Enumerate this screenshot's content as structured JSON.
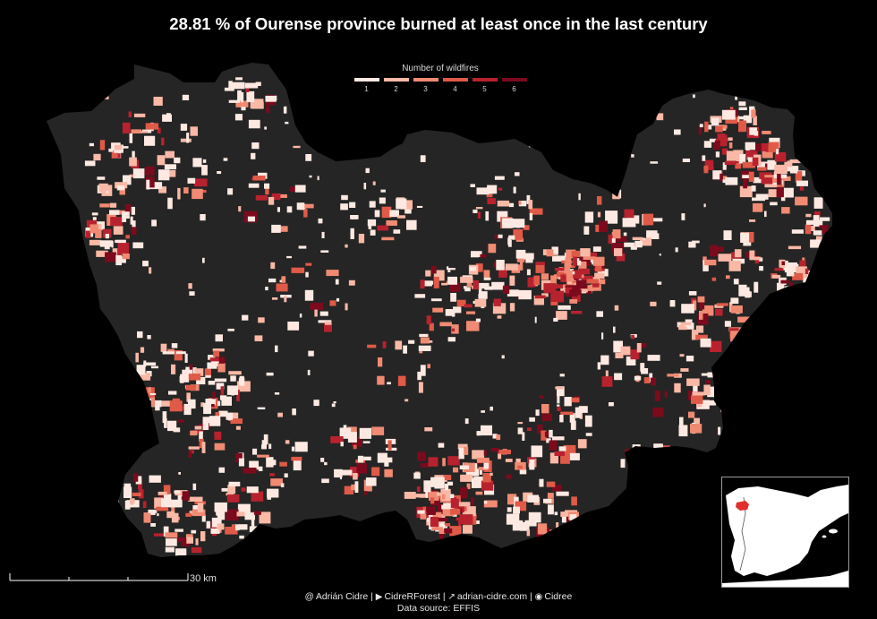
{
  "title": "28.81 % of Ourense province burned at least once in the last century",
  "legend": {
    "title": "Number of wildfires",
    "items": [
      {
        "label": "1",
        "color": "#fde9e2"
      },
      {
        "label": "2",
        "color": "#f9b9a6"
      },
      {
        "label": "3",
        "color": "#f08a72"
      },
      {
        "label": "4",
        "color": "#e05a48"
      },
      {
        "label": "5",
        "color": "#b8222e"
      },
      {
        "label": "6",
        "color": "#7c0a1d"
      }
    ]
  },
  "scale": {
    "label": "30 km"
  },
  "credits": {
    "author": "Adrián Cidre",
    "youtube": "CidreRForest",
    "website": "adrian-cidre.com",
    "github": "Cidree",
    "source": "Data source: EFFIS"
  },
  "colors": {
    "background": "#000000",
    "province": "#252525",
    "inset_land": "#ffffff",
    "inset_sea": "#000000",
    "highlight": "#e0302c"
  },
  "inset": {
    "description_icon": "iberian-peninsula-locator"
  }
}
